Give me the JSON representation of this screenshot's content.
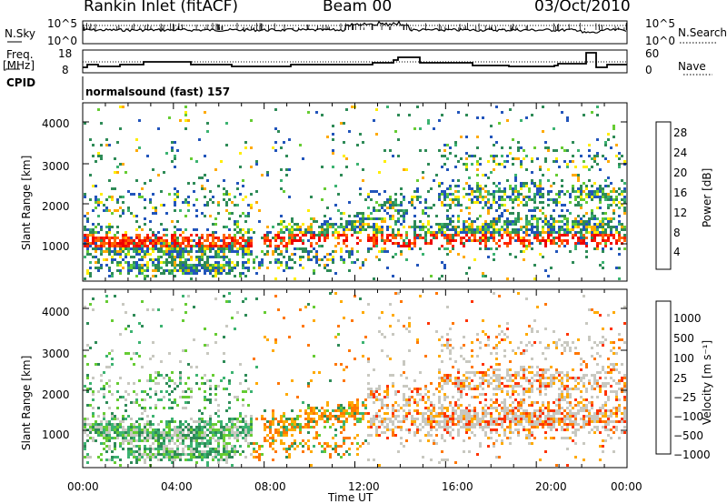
{
  "header": {
    "station": "Rankin Inlet (fitACF)",
    "beam": "Beam 00",
    "date": "03/Oct/2010"
  },
  "status_panels": {
    "nsky_label": "N.Sky",
    "nsky_ticks": [
      "10^5",
      "10^0"
    ],
    "nsearch_label": "N.Search",
    "nsearch_ticks": [
      "10^5",
      "10^0"
    ],
    "freq_label": "Freq.",
    "freq_unit": "[MHz]",
    "freq_ticks": [
      "18",
      "8"
    ],
    "nave_label": "Nave",
    "nave_ticks": [
      "60",
      "0"
    ],
    "cpid_label": "CPID",
    "cpid_value": "normalsound (fast) 157"
  },
  "chart_data": [
    {
      "type": "heatmap",
      "name": "power",
      "ylabel": "Slant Range [km]",
      "yticks": [
        "1000",
        "2000",
        "3000",
        "4000"
      ],
      "ylim": [
        180,
        4500
      ],
      "colorbar_label": "Power [dB]",
      "colorbar_ticks": [
        "28",
        "24",
        "20",
        "16",
        "12",
        "8",
        "4"
      ],
      "colors": [
        "#1a1aff",
        "#2255bb",
        "#2e8b57",
        "#3cb371",
        "#66cc33",
        "#ffee00",
        "#ffaa00",
        "#ff6600",
        "#ff2200",
        "#ee0000"
      ]
    },
    {
      "type": "heatmap",
      "name": "velocity",
      "ylabel": "Slant Range [km]",
      "yticks": [
        "1000",
        "2000",
        "3000",
        "4000"
      ],
      "ylim": [
        180,
        4500
      ],
      "colorbar_label": "Velocity [m s⁻¹]",
      "colorbar_ticks": [
        "1000",
        "500",
        "100",
        "25",
        "−25",
        "−100",
        "−500",
        "−1000"
      ],
      "colors": [
        "#2233aa",
        "#2e8b57",
        "#3cb371",
        "#66cc33",
        "#c8c8c0",
        "#ffaa00",
        "#ff7700",
        "#ff3300",
        "#ee0000"
      ]
    }
  ],
  "xaxis": {
    "label": "Time UT",
    "ticks": [
      "00:00",
      "04:00",
      "08:00",
      "12:00",
      "16:00",
      "20:00",
      "00:00"
    ]
  }
}
